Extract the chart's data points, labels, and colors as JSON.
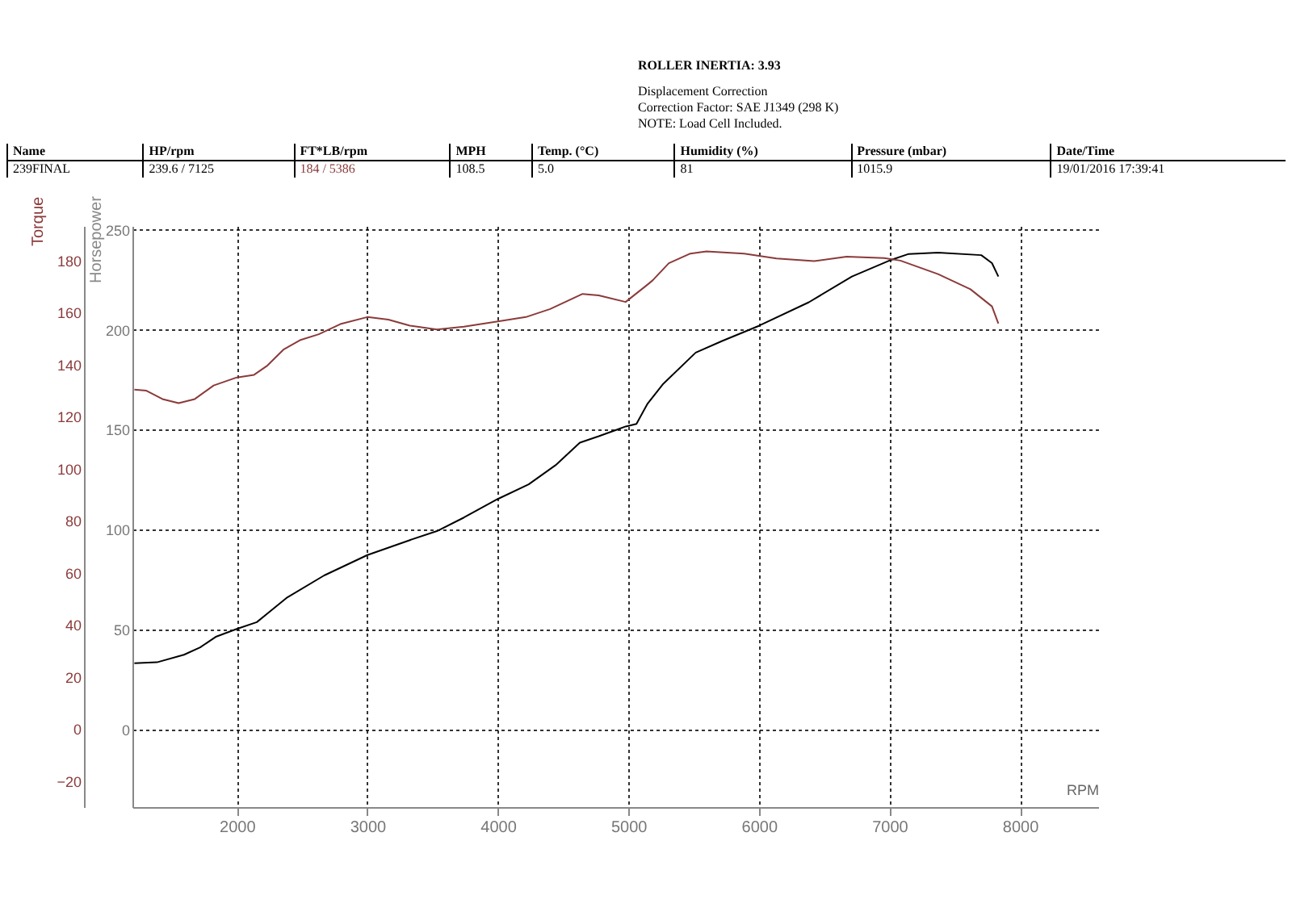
{
  "chart_data": {
    "type": "line",
    "annotations": [
      "ROLLER INERTIA: 3.93",
      "Displacement Correction",
      "Correction Factor: SAE J1349 (298 K)",
      "NOTE: Load Cell Included.",
      "Name",
      "HP/rpm",
      "FT*LB/rpm",
      "MPH",
      "Temp. (°C)",
      "Humidity (%)",
      "Pressure (mbar)",
      "Date/Time",
      "239FINAL",
      "239.6 / 7125",
      "184 / 5386",
      "108.5",
      "5.0",
      "81",
      "1015.9",
      "19/01/2016 17:39:41"
    ],
    "xlabel": "RPM",
    "ylabel": "Horsepower",
    "y2label": "Torque",
    "xlim": [
      1200,
      8600
    ],
    "xticks": [
      2000,
      3000,
      4000,
      5000,
      6000,
      7000,
      8000
    ],
    "ylim": [
      -39,
      252
    ],
    "yticks": [
      0,
      50,
      100,
      150,
      200,
      250
    ],
    "y2lim": [
      -30,
      193.3
    ],
    "y2ticks": [
      -20,
      0,
      20,
      40,
      60,
      80,
      100,
      120,
      140,
      160,
      180
    ],
    "grid": true,
    "series": [
      {
        "color": "#000000",
        "x": [
          1215,
          1388,
          1595,
          1719,
          1843,
          2000,
          2153,
          2380,
          2669,
          3000,
          3326,
          3533,
          3740,
          4000,
          4236,
          4442,
          4628,
          4773,
          4979,
          5062,
          5145,
          5268,
          5516,
          5722,
          6000,
          6383,
          6713,
          7000,
          7148,
          7373,
          7704,
          7786,
          7835
        ],
        "values": [
          33,
          33.5,
          37.3,
          41,
          46.4,
          50.2,
          53.6,
          65.7,
          77,
          87.2,
          94.7,
          99.2,
          106,
          115.3,
          122.6,
          132.2,
          143.5,
          146.7,
          151.6,
          152.9,
          162.8,
          173,
          188.6,
          194.5,
          202,
          213.8,
          226.7,
          234.7,
          238,
          238.7,
          237.4,
          233.4,
          226.7
        ]
      },
      {
        "color": "#8b3a3a",
        "axis": "y2",
        "x": [
          1215,
          1307,
          1430,
          1554,
          1678,
          1822,
          2000,
          2132,
          2235,
          2360,
          2483,
          2628,
          2793,
          3000,
          3161,
          3326,
          3533,
          3740,
          4000,
          4215,
          4401,
          4649,
          4773,
          4979,
          5145,
          5186,
          5310,
          5475,
          5598,
          5887,
          6135,
          6424,
          6672,
          6960,
          7084,
          7373,
          7621,
          7786,
          7835
        ],
        "values": [
          130.4,
          130,
          126.8,
          125.2,
          126.8,
          132,
          135.1,
          136.1,
          139.7,
          145.9,
          149.4,
          151.7,
          155.6,
          158.3,
          157.3,
          155,
          153.5,
          154.6,
          156.6,
          158.3,
          161.4,
          167.2,
          166.6,
          164.1,
          170.7,
          172.4,
          179,
          182.7,
          183.5,
          182.7,
          180.8,
          179.8,
          181.5,
          181,
          180,
          174.8,
          169,
          162.4,
          155.8
        ]
      }
    ]
  }
}
